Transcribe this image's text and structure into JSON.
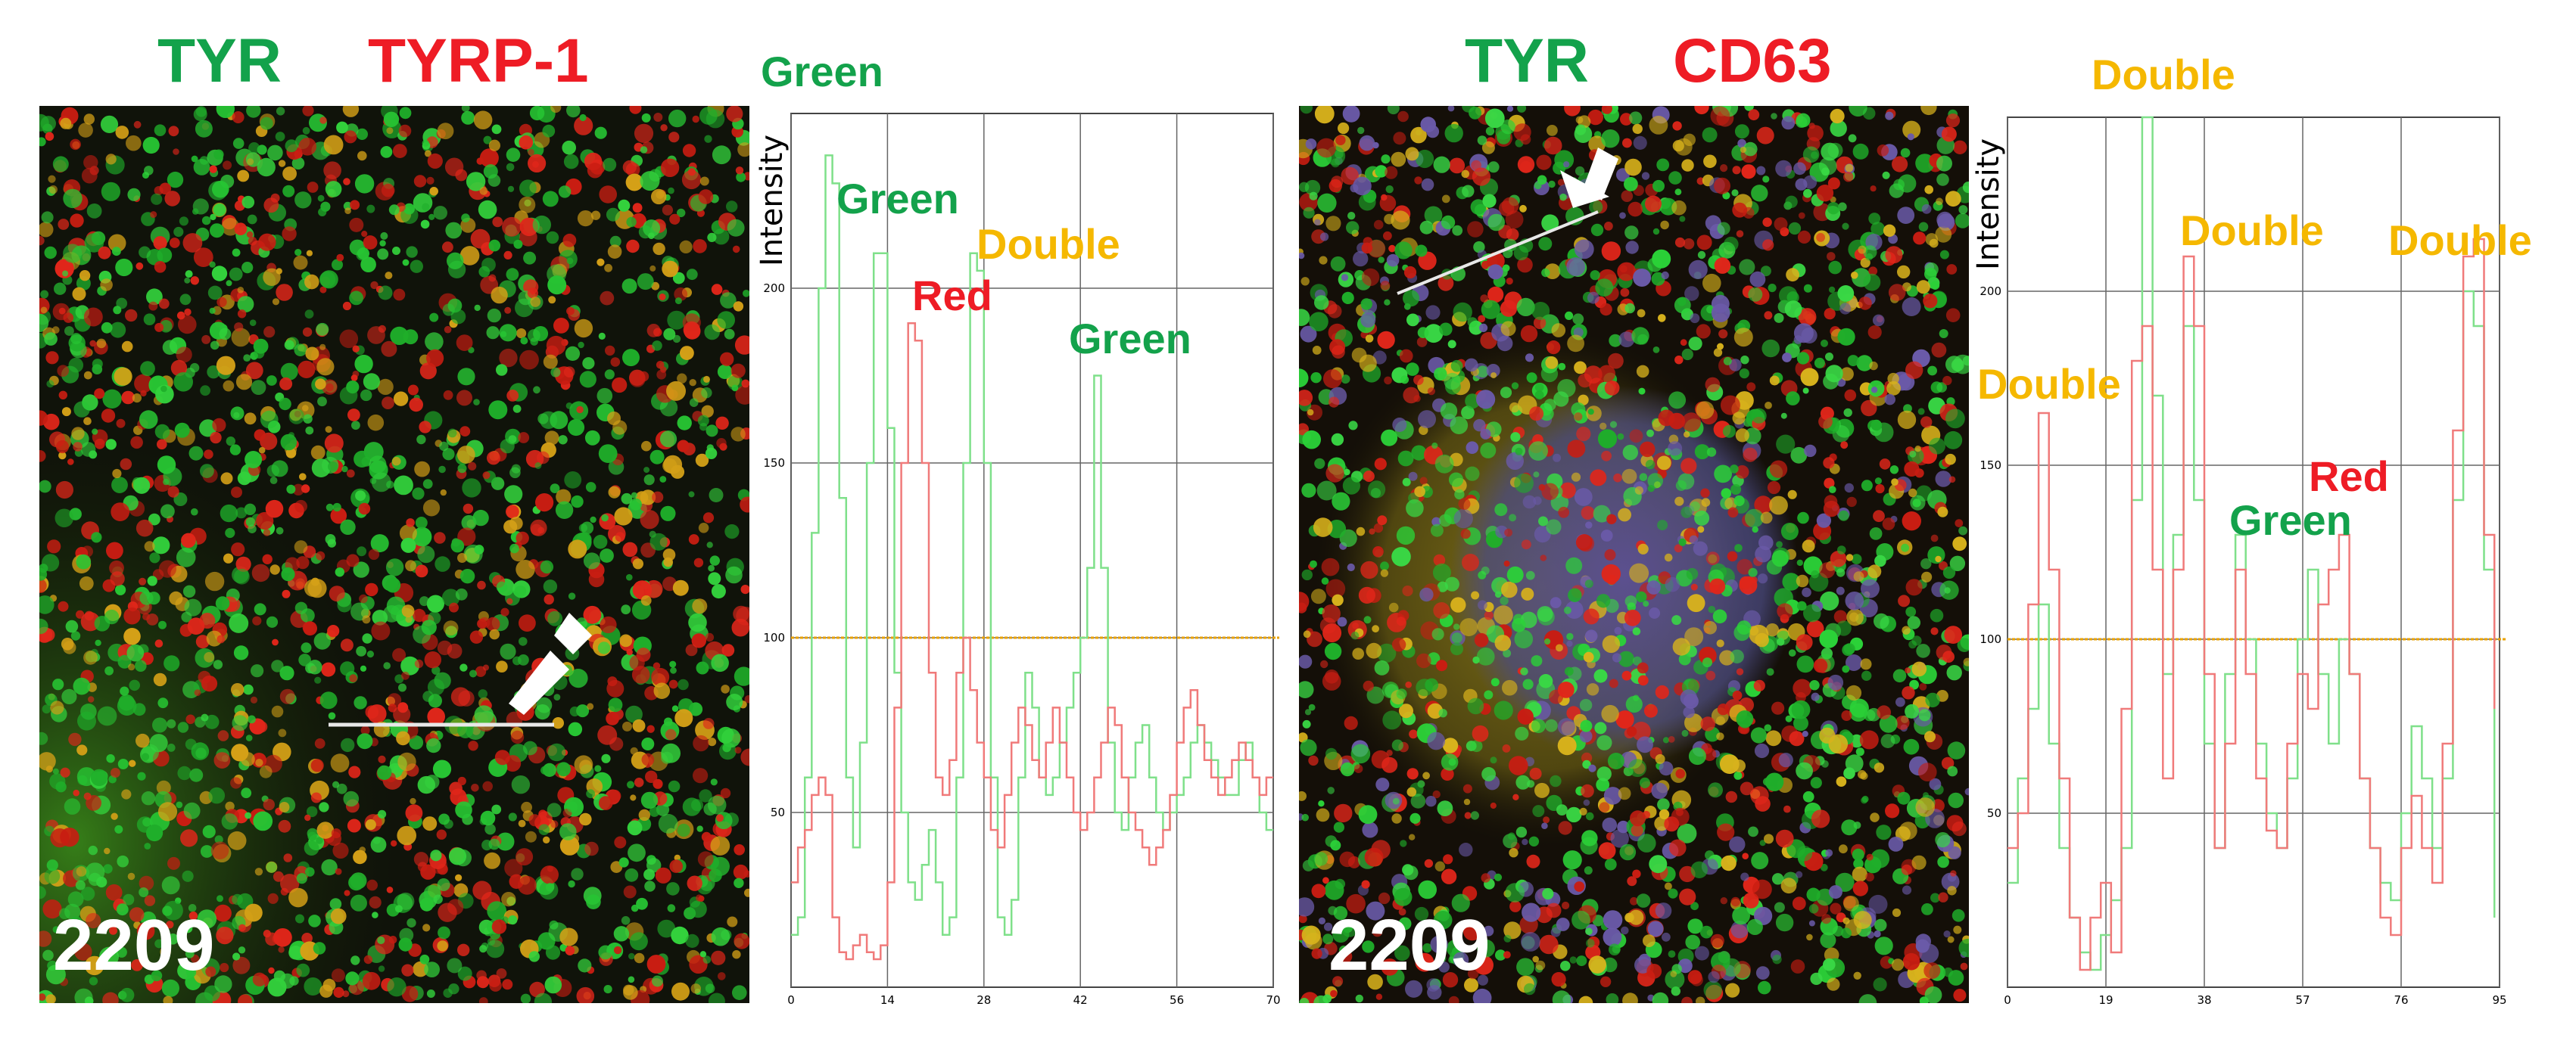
{
  "figure": {
    "left_titles": {
      "tyr": "TYR",
      "marker": "TYRP-1"
    },
    "right_titles": {
      "tyr": "TYR",
      "marker": "CD63"
    },
    "left_image_label": "2209",
    "right_image_label": "2209",
    "left_plot_heading": "Green",
    "right_plot_heading": "Double",
    "colors": {
      "green": "#13a24b",
      "red": "#ee1c25",
      "yellow": "#f5b800",
      "threshold": "#e8a100"
    }
  },
  "chart_data": [
    {
      "type": "line",
      "title": "Green",
      "ylabel": "Intensity",
      "xlabel": "",
      "xlim": [
        0,
        70
      ],
      "ylim": [
        0,
        250
      ],
      "xticks": [
        "0",
        "14",
        "28",
        "42",
        "56",
        "70"
      ],
      "yticks": [
        "50",
        "100",
        "150",
        "200"
      ],
      "threshold": 100,
      "annotations": [
        "Green",
        "Red",
        "Double",
        "Green"
      ],
      "series": [
        {
          "name": "Green",
          "color": "green",
          "x": [
            0,
            1,
            2,
            3,
            4,
            5,
            6,
            7,
            8,
            9,
            10,
            11,
            12,
            13,
            14,
            15,
            16,
            17,
            18,
            19,
            20,
            21,
            22,
            23,
            24,
            25,
            26,
            27,
            28,
            29,
            30,
            31,
            32,
            33,
            34,
            35,
            36,
            37,
            38,
            39,
            40,
            41,
            42,
            43,
            44,
            45,
            46,
            47,
            48,
            49,
            50,
            51,
            52,
            53,
            54,
            55,
            56,
            57,
            58,
            59,
            60,
            61,
            62,
            63,
            64,
            65,
            66,
            67,
            68,
            69,
            70
          ],
          "values": [
            15,
            20,
            60,
            130,
            200,
            238,
            230,
            140,
            60,
            40,
            70,
            150,
            210,
            210,
            160,
            90,
            50,
            30,
            25,
            35,
            45,
            30,
            15,
            20,
            60,
            150,
            210,
            205,
            150,
            60,
            20,
            15,
            25,
            60,
            90,
            80,
            60,
            55,
            60,
            70,
            80,
            90,
            100,
            120,
            175,
            120,
            70,
            50,
            45,
            60,
            70,
            75,
            60,
            50,
            45,
            50,
            55,
            60,
            70,
            75,
            70,
            65,
            60,
            55,
            55,
            65,
            70,
            60,
            50,
            45,
            45
          ]
        },
        {
          "name": "Red",
          "color": "red",
          "x": [
            0,
            1,
            2,
            3,
            4,
            5,
            6,
            7,
            8,
            9,
            10,
            11,
            12,
            13,
            14,
            15,
            16,
            17,
            18,
            19,
            20,
            21,
            22,
            23,
            24,
            25,
            26,
            27,
            28,
            29,
            30,
            31,
            32,
            33,
            34,
            35,
            36,
            37,
            38,
            39,
            40,
            41,
            42,
            43,
            44,
            45,
            46,
            47,
            48,
            49,
            50,
            51,
            52,
            53,
            54,
            55,
            56,
            57,
            58,
            59,
            60,
            61,
            62,
            63,
            64,
            65,
            66,
            67,
            68,
            69,
            70
          ],
          "values": [
            30,
            40,
            45,
            55,
            60,
            55,
            20,
            10,
            8,
            12,
            15,
            10,
            8,
            12,
            30,
            80,
            150,
            190,
            185,
            150,
            90,
            60,
            55,
            65,
            90,
            100,
            85,
            70,
            60,
            45,
            40,
            55,
            70,
            80,
            75,
            65,
            60,
            70,
            80,
            70,
            60,
            50,
            45,
            50,
            60,
            70,
            80,
            75,
            60,
            50,
            45,
            40,
            35,
            40,
            45,
            55,
            70,
            80,
            85,
            75,
            65,
            60,
            55,
            60,
            65,
            70,
            65,
            60,
            55,
            60,
            60
          ]
        }
      ]
    },
    {
      "type": "line",
      "title": "Double",
      "ylabel": "Intensity",
      "xlabel": "",
      "xlim": [
        0,
        95
      ],
      "ylim": [
        0,
        250
      ],
      "xticks": [
        "0",
        "19",
        "38",
        "57",
        "76",
        "95"
      ],
      "yticks": [
        "50",
        "100",
        "150",
        "200"
      ],
      "threshold": 100,
      "annotations": [
        "Double",
        "Double",
        "Double",
        "Red",
        "Green"
      ],
      "series": [
        {
          "name": "Green",
          "color": "green",
          "x": [
            0,
            2,
            4,
            6,
            8,
            10,
            12,
            14,
            16,
            18,
            20,
            22,
            24,
            26,
            28,
            30,
            32,
            34,
            36,
            38,
            40,
            42,
            44,
            46,
            48,
            50,
            52,
            54,
            56,
            58,
            60,
            62,
            64,
            66,
            68,
            70,
            72,
            74,
            76,
            78,
            80,
            82,
            84,
            86,
            88,
            90,
            92,
            94
          ],
          "values": [
            30,
            60,
            80,
            110,
            70,
            40,
            20,
            10,
            5,
            15,
            25,
            40,
            140,
            250,
            170,
            90,
            130,
            190,
            140,
            70,
            40,
            90,
            130,
            100,
            70,
            50,
            40,
            60,
            100,
            120,
            90,
            70,
            100,
            90,
            60,
            40,
            30,
            25,
            50,
            75,
            60,
            40,
            60,
            140,
            200,
            190,
            120,
            20
          ]
        },
        {
          "name": "Red",
          "color": "red",
          "x": [
            0,
            2,
            4,
            6,
            8,
            10,
            12,
            14,
            16,
            18,
            20,
            22,
            24,
            26,
            28,
            30,
            32,
            34,
            36,
            38,
            40,
            42,
            44,
            46,
            48,
            50,
            52,
            54,
            56,
            58,
            60,
            62,
            64,
            66,
            68,
            70,
            72,
            74,
            76,
            78,
            80,
            82,
            84,
            86,
            88,
            90,
            92,
            94
          ],
          "values": [
            40,
            50,
            110,
            165,
            120,
            60,
            20,
            5,
            20,
            30,
            10,
            80,
            180,
            190,
            120,
            60,
            120,
            210,
            190,
            90,
            40,
            70,
            120,
            90,
            60,
            45,
            40,
            70,
            90,
            80,
            110,
            120,
            130,
            90,
            60,
            40,
            20,
            15,
            40,
            55,
            40,
            30,
            70,
            160,
            210,
            215,
            130,
            80
          ]
        }
      ]
    }
  ]
}
